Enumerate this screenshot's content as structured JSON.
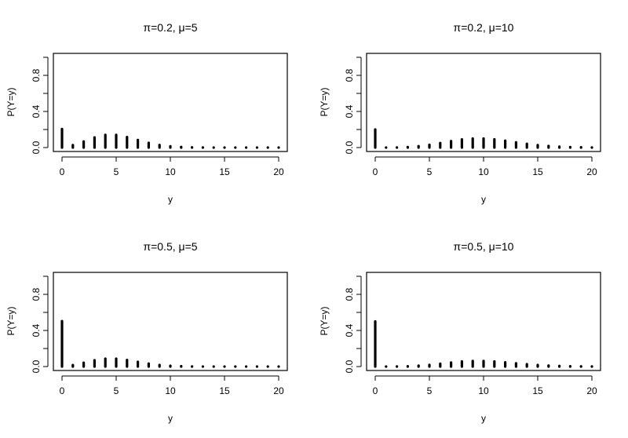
{
  "chart_data": [
    {
      "type": "bar",
      "title": "π=0.2, μ=5",
      "xlabel": "y",
      "ylabel": "P(Y=y)",
      "xlim": [
        0,
        20
      ],
      "ylim": [
        0,
        1
      ],
      "xticks": [
        "0",
        "5",
        "10",
        "15",
        "20"
      ],
      "yticks": [
        "0.0",
        "0.4",
        "0.8"
      ],
      "x": [
        0,
        1,
        2,
        3,
        4,
        5,
        6,
        7,
        8,
        9,
        10,
        11,
        12,
        13,
        14,
        15,
        16,
        17,
        18,
        19,
        20
      ],
      "values": [
        0.2054,
        0.027,
        0.0674,
        0.1123,
        0.1404,
        0.1404,
        0.117,
        0.0836,
        0.0522,
        0.029,
        0.0145,
        0.0066,
        0.0027,
        0.0011,
        0.0004,
        0.0001,
        0.0,
        0.0,
        0.0,
        0.0,
        0.0
      ],
      "grid": false
    },
    {
      "type": "bar",
      "title": "π=0.2, μ=10",
      "xlabel": "y",
      "ylabel": "P(Y=y)",
      "xlim": [
        0,
        20
      ],
      "ylim": [
        0,
        1
      ],
      "xticks": [
        "0",
        "5",
        "10",
        "15",
        "20"
      ],
      "yticks": [
        "0.0",
        "0.4",
        "0.8"
      ],
      "x": [
        0,
        1,
        2,
        3,
        4,
        5,
        6,
        7,
        8,
        9,
        10,
        11,
        12,
        13,
        14,
        15,
        16,
        17,
        18,
        19,
        20
      ],
      "values": [
        0.2,
        0.0004,
        0.0018,
        0.0061,
        0.0151,
        0.0303,
        0.0504,
        0.0721,
        0.0901,
        0.1001,
        0.1001,
        0.091,
        0.0758,
        0.0583,
        0.0417,
        0.0278,
        0.0174,
        0.0102,
        0.0057,
        0.003,
        0.0015
      ],
      "grid": false
    },
    {
      "type": "bar",
      "title": "π=0.5, μ=5",
      "xlabel": "y",
      "ylabel": "P(Y=y)",
      "xlim": [
        0,
        20
      ],
      "ylim": [
        0,
        1
      ],
      "xticks": [
        "0",
        "5",
        "10",
        "15",
        "20"
      ],
      "yticks": [
        "0.0",
        "0.4",
        "0.8"
      ],
      "x": [
        0,
        1,
        2,
        3,
        4,
        5,
        6,
        7,
        8,
        9,
        10,
        11,
        12,
        13,
        14,
        15,
        16,
        17,
        18,
        19,
        20
      ],
      "values": [
        0.5034,
        0.0168,
        0.0421,
        0.0702,
        0.0877,
        0.0877,
        0.0731,
        0.0522,
        0.0326,
        0.0181,
        0.0091,
        0.0041,
        0.0017,
        0.0007,
        0.0002,
        0.0001,
        0.0,
        0.0,
        0.0,
        0.0,
        0.0
      ],
      "grid": false
    },
    {
      "type": "bar",
      "title": "π=0.5, μ=10",
      "xlabel": "y",
      "ylabel": "P(Y=y)",
      "xlim": [
        0,
        20
      ],
      "ylim": [
        0,
        1
      ],
      "xticks": [
        "0",
        "5",
        "10",
        "15",
        "20"
      ],
      "yticks": [
        "0.0",
        "0.4",
        "0.8"
      ],
      "x": [
        0,
        1,
        2,
        3,
        4,
        5,
        6,
        7,
        8,
        9,
        10,
        11,
        12,
        13,
        14,
        15,
        16,
        17,
        18,
        19,
        20
      ],
      "values": [
        0.5,
        0.0002,
        0.0011,
        0.0038,
        0.0095,
        0.0189,
        0.0315,
        0.045,
        0.0563,
        0.0626,
        0.0626,
        0.0569,
        0.0474,
        0.0365,
        0.026,
        0.0174,
        0.0109,
        0.0064,
        0.0035,
        0.0019,
        0.0009
      ],
      "grid": false
    }
  ]
}
